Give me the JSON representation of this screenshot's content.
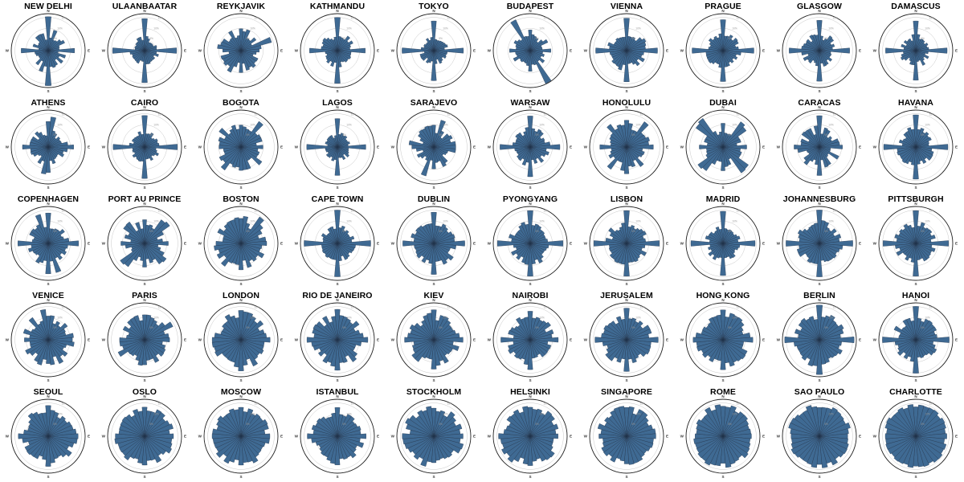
{
  "chart_data": {
    "type": "polar-histogram",
    "title": "",
    "compass_labels": [
      "N",
      "E",
      "S",
      "W"
    ],
    "ring_labels": [
      "5%",
      "10%",
      "15%"
    ],
    "bins": 36,
    "bar_color": "#3f6a93",
    "bar_edge_color": "#1f3048",
    "cities": [
      "NEW DELHI",
      "ULAANBAATAR",
      "REYKJAVIK",
      "KATHMANDU",
      "TOKYO",
      "BUDAPEST",
      "VIENNA",
      "PRAGUE",
      "GLASGOW",
      "DAMASCUS",
      "ATHENS",
      "CAIRO",
      "BOGOTA",
      "LAGOS",
      "SARAJEVO",
      "WARSAW",
      "HONOLULU",
      "DUBAI",
      "CARACAS",
      "HAVANA",
      "COPENHAGEN",
      "PORT AU PRINCE",
      "BOSTON",
      "CAPE TOWN",
      "DUBLIN",
      "PYONGYANG",
      "LISBON",
      "MADRID",
      "JOHANNESBURG",
      "PITTSBURGH",
      "VENICE",
      "PARIS",
      "LONDON",
      "RIO DE JANEIRO",
      "KIEV",
      "NAIROBI",
      "JERUSALEM",
      "HONG KONG",
      "BERLIN",
      "HANOI",
      "SEOUL",
      "OSLO",
      "MOSCOW",
      "ISTANBUL",
      "STOCKHOLM",
      "HELSINKI",
      "SINGAPORE",
      "ROME",
      "SAO PAULO",
      "CHARLOTTE"
    ],
    "profiles": [
      {
        "grid": 0.6,
        "base": 0.25,
        "spread": 0.25,
        "peaks": [
          [
            0,
            1.0,
            1
          ],
          [
            180,
            0.95,
            1
          ],
          [
            90,
            0.75,
            1
          ],
          [
            270,
            0.8,
            1
          ],
          [
            20,
            0.6,
            1
          ],
          [
            200,
            0.6,
            1
          ]
        ]
      },
      {
        "grid": 0.95,
        "base": 0.25,
        "spread": 0.15,
        "peaks": [
          [
            0,
            0.55,
            2
          ],
          [
            180,
            0.55,
            2
          ],
          [
            90,
            0.8,
            1
          ],
          [
            270,
            0.8,
            1
          ]
        ]
      },
      {
        "grid": 0.3,
        "base": 0.3,
        "spread": 0.35,
        "peaks": [
          [
            70,
            0.9,
            1
          ],
          [
            250,
            0.6,
            1
          ],
          [
            330,
            0.65,
            1
          ],
          [
            150,
            0.55,
            1
          ]
        ]
      },
      {
        "grid": 0.7,
        "base": 0.3,
        "spread": 0.2,
        "peaks": [
          [
            0,
            0.95,
            1
          ],
          [
            180,
            0.9,
            1
          ],
          [
            90,
            0.7,
            1
          ],
          [
            270,
            0.8,
            1
          ]
        ]
      },
      {
        "grid": 0.85,
        "base": 0.25,
        "spread": 0.15,
        "peaks": [
          [
            0,
            0.85,
            1
          ],
          [
            180,
            0.9,
            1
          ],
          [
            90,
            0.85,
            1
          ],
          [
            270,
            0.9,
            1
          ]
        ]
      },
      {
        "grid": 0.4,
        "base": 0.3,
        "spread": 0.2,
        "peaks": [
          [
            330,
            1.0,
            1
          ],
          [
            150,
            1.0,
            1
          ],
          [
            60,
            0.55,
            1
          ],
          [
            240,
            0.55,
            1
          ]
        ]
      },
      {
        "grid": 0.75,
        "base": 0.35,
        "spread": 0.2,
        "peaks": [
          [
            0,
            0.9,
            1
          ],
          [
            180,
            0.85,
            1
          ],
          [
            90,
            0.7,
            1
          ],
          [
            270,
            0.8,
            1
          ],
          [
            60,
            0.6,
            1
          ]
        ]
      },
      {
        "grid": 0.75,
        "base": 0.35,
        "spread": 0.15,
        "peaks": [
          [
            0,
            0.8,
            1
          ],
          [
            180,
            0.8,
            1
          ],
          [
            90,
            0.75,
            1
          ],
          [
            270,
            0.8,
            1
          ]
        ]
      },
      {
        "grid": 0.8,
        "base": 0.3,
        "spread": 0.2,
        "peaks": [
          [
            0,
            0.85,
            1
          ],
          [
            180,
            0.85,
            1
          ],
          [
            90,
            0.85,
            1
          ],
          [
            270,
            0.8,
            1
          ]
        ]
      },
      {
        "grid": 0.85,
        "base": 0.25,
        "spread": 0.2,
        "peaks": [
          [
            0,
            0.8,
            1
          ],
          [
            180,
            0.8,
            1
          ],
          [
            90,
            0.85,
            1
          ],
          [
            270,
            0.85,
            1
          ]
        ]
      },
      {
        "grid": 0.6,
        "base": 0.3,
        "spread": 0.25,
        "peaks": [
          [
            10,
            0.85,
            1
          ],
          [
            190,
            0.8,
            1
          ],
          [
            90,
            0.6,
            1
          ],
          [
            270,
            0.7,
            1
          ]
        ]
      },
      {
        "grid": 0.85,
        "base": 0.3,
        "spread": 0.15,
        "peaks": [
          [
            0,
            0.8,
            1
          ],
          [
            180,
            0.8,
            1
          ],
          [
            90,
            0.9,
            1
          ],
          [
            270,
            0.9,
            1
          ]
        ]
      },
      {
        "grid": 0.3,
        "base": 0.4,
        "spread": 0.25,
        "peaks": [
          [
            40,
            0.9,
            1
          ],
          [
            220,
            0.8,
            1
          ],
          [
            310,
            0.8,
            1
          ],
          [
            130,
            0.75,
            1
          ]
        ]
      },
      {
        "grid": 0.8,
        "base": 0.25,
        "spread": 0.15,
        "peaks": [
          [
            0,
            0.8,
            1
          ],
          [
            180,
            0.8,
            1
          ],
          [
            90,
            0.8,
            1
          ],
          [
            270,
            0.85,
            1
          ]
        ]
      },
      {
        "grid": 0.45,
        "base": 0.3,
        "spread": 0.3,
        "peaks": [
          [
            20,
            0.8,
            1
          ],
          [
            200,
            0.85,
            1
          ],
          [
            100,
            0.6,
            1
          ],
          [
            280,
            0.7,
            1
          ]
        ]
      },
      {
        "grid": 0.7,
        "base": 0.35,
        "spread": 0.2,
        "peaks": [
          [
            0,
            0.9,
            1
          ],
          [
            180,
            0.85,
            1
          ],
          [
            90,
            0.7,
            1
          ],
          [
            270,
            0.85,
            1
          ]
        ]
      },
      {
        "grid": 0.5,
        "base": 0.4,
        "spread": 0.25,
        "peaks": [
          [
            40,
            0.85,
            1
          ],
          [
            220,
            0.8,
            1
          ],
          [
            320,
            0.8,
            1
          ],
          [
            140,
            0.7,
            1
          ]
        ]
      },
      {
        "grid": 0.45,
        "base": 0.35,
        "spread": 0.2,
        "peaks": [
          [
            315,
            0.95,
            1
          ],
          [
            135,
            0.9,
            1
          ],
          [
            45,
            0.85,
            1
          ],
          [
            225,
            0.85,
            1
          ]
        ]
      },
      {
        "grid": 0.5,
        "base": 0.3,
        "spread": 0.3,
        "peaks": [
          [
            0,
            0.85,
            1
          ],
          [
            180,
            0.8,
            1
          ],
          [
            90,
            0.65,
            1
          ],
          [
            270,
            0.7,
            1
          ]
        ]
      },
      {
        "grid": 0.8,
        "base": 0.35,
        "spread": 0.2,
        "peaks": [
          [
            0,
            0.85,
            1
          ],
          [
            180,
            0.85,
            1
          ],
          [
            90,
            0.8,
            1
          ],
          [
            270,
            0.8,
            1
          ]
        ]
      },
      {
        "grid": 0.65,
        "base": 0.4,
        "spread": 0.2,
        "peaks": [
          [
            340,
            0.9,
            1
          ],
          [
            160,
            0.85,
            1
          ],
          [
            90,
            0.8,
            1
          ],
          [
            270,
            0.8,
            1
          ]
        ]
      },
      {
        "grid": 0.45,
        "base": 0.35,
        "spread": 0.25,
        "peaks": [
          [
            45,
            0.85,
            1
          ],
          [
            225,
            0.85,
            1
          ],
          [
            315,
            0.75,
            1
          ],
          [
            135,
            0.75,
            1
          ]
        ]
      },
      {
        "grid": 0.35,
        "base": 0.45,
        "spread": 0.3,
        "peaks": [
          [
            40,
            0.9,
            1
          ],
          [
            220,
            0.8,
            1
          ],
          [
            300,
            0.75,
            1
          ],
          [
            120,
            0.7,
            1
          ]
        ]
      },
      {
        "grid": 0.85,
        "base": 0.35,
        "spread": 0.15,
        "peaks": [
          [
            0,
            0.9,
            1
          ],
          [
            180,
            0.9,
            1
          ],
          [
            90,
            0.85,
            1
          ],
          [
            270,
            0.85,
            1
          ]
        ]
      },
      {
        "grid": 0.6,
        "base": 0.45,
        "spread": 0.2,
        "peaks": [
          [
            0,
            0.85,
            1
          ],
          [
            180,
            0.8,
            1
          ],
          [
            90,
            0.75,
            1
          ],
          [
            270,
            0.8,
            1
          ]
        ]
      },
      {
        "grid": 0.75,
        "base": 0.4,
        "spread": 0.2,
        "peaks": [
          [
            0,
            0.85,
            1
          ],
          [
            180,
            0.85,
            1
          ],
          [
            90,
            0.7,
            1
          ],
          [
            270,
            0.8,
            1
          ]
        ]
      },
      {
        "grid": 0.75,
        "base": 0.4,
        "spread": 0.2,
        "peaks": [
          [
            0,
            0.9,
            1
          ],
          [
            180,
            0.85,
            1
          ],
          [
            90,
            0.8,
            1
          ],
          [
            270,
            0.75,
            1
          ]
        ]
      },
      {
        "grid": 0.8,
        "base": 0.35,
        "spread": 0.15,
        "peaks": [
          [
            0,
            0.9,
            1
          ],
          [
            180,
            0.85,
            1
          ],
          [
            90,
            0.75,
            1
          ],
          [
            270,
            0.75,
            1
          ]
        ]
      },
      {
        "grid": 0.7,
        "base": 0.45,
        "spread": 0.2,
        "peaks": [
          [
            0,
            0.8,
            1
          ],
          [
            180,
            0.8,
            1
          ],
          [
            90,
            0.75,
            1
          ],
          [
            270,
            0.75,
            1
          ]
        ]
      },
      {
        "grid": 0.75,
        "base": 0.4,
        "spread": 0.2,
        "peaks": [
          [
            0,
            0.85,
            1
          ],
          [
            180,
            0.9,
            1
          ],
          [
            90,
            0.75,
            1
          ],
          [
            270,
            0.8,
            1
          ]
        ]
      },
      {
        "grid": 0.3,
        "base": 0.45,
        "spread": 0.3,
        "peaks": [
          [
            350,
            0.85,
            1
          ],
          [
            170,
            0.75,
            1
          ],
          [
            50,
            0.7,
            1
          ],
          [
            240,
            0.7,
            1
          ]
        ]
      },
      {
        "grid": 0.35,
        "base": 0.45,
        "spread": 0.25,
        "peaks": [
          [
            60,
            0.85,
            1
          ],
          [
            240,
            0.8,
            1
          ],
          [
            330,
            0.7,
            1
          ],
          [
            150,
            0.7,
            1
          ]
        ]
      },
      {
        "grid": 0.35,
        "base": 0.55,
        "spread": 0.25,
        "peaks": [
          [
            0,
            0.85,
            1
          ],
          [
            180,
            0.85,
            1
          ],
          [
            90,
            0.8,
            1
          ],
          [
            270,
            0.8,
            1
          ]
        ]
      },
      {
        "grid": 0.5,
        "base": 0.5,
        "spread": 0.25,
        "peaks": [
          [
            0,
            0.85,
            1
          ],
          [
            180,
            0.85,
            1
          ],
          [
            90,
            0.8,
            1
          ],
          [
            270,
            0.8,
            1
          ]
        ]
      },
      {
        "grid": 0.45,
        "base": 0.5,
        "spread": 0.25,
        "peaks": [
          [
            0,
            0.85,
            1
          ],
          [
            180,
            0.85,
            1
          ],
          [
            90,
            0.8,
            1
          ],
          [
            270,
            0.8,
            1
          ]
        ]
      },
      {
        "grid": 0.45,
        "base": 0.45,
        "spread": 0.25,
        "peaks": [
          [
            0,
            0.85,
            1
          ],
          [
            180,
            0.85,
            1
          ],
          [
            90,
            0.8,
            1
          ],
          [
            270,
            0.8,
            1
          ]
        ]
      },
      {
        "grid": 0.55,
        "base": 0.5,
        "spread": 0.2,
        "peaks": [
          [
            0,
            0.85,
            1
          ],
          [
            180,
            0.85,
            1
          ],
          [
            90,
            0.8,
            1
          ],
          [
            270,
            0.8,
            1
          ]
        ]
      },
      {
        "grid": 0.4,
        "base": 0.55,
        "spread": 0.2,
        "peaks": [
          [
            0,
            0.8,
            1
          ],
          [
            180,
            0.8,
            1
          ],
          [
            90,
            0.8,
            1
          ],
          [
            270,
            0.8,
            1
          ]
        ]
      },
      {
        "grid": 0.6,
        "base": 0.55,
        "spread": 0.2,
        "peaks": [
          [
            0,
            0.85,
            1
          ],
          [
            180,
            0.85,
            1
          ],
          [
            90,
            0.8,
            1
          ],
          [
            270,
            0.8,
            1
          ]
        ]
      },
      {
        "grid": 0.7,
        "base": 0.45,
        "spread": 0.2,
        "peaks": [
          [
            0,
            0.95,
            1
          ],
          [
            180,
            0.85,
            1
          ],
          [
            90,
            0.8,
            1
          ],
          [
            270,
            0.8,
            1
          ]
        ]
      },
      {
        "grid": 0.4,
        "base": 0.55,
        "spread": 0.25,
        "peaks": [
          [
            0,
            0.85,
            1
          ],
          [
            180,
            0.85,
            1
          ],
          [
            90,
            0.8,
            1
          ],
          [
            270,
            0.8,
            1
          ]
        ]
      },
      {
        "grid": 0.25,
        "base": 0.62,
        "spread": 0.2,
        "peaks": [
          [
            0,
            0.8,
            1
          ],
          [
            180,
            0.8,
            1
          ]
        ]
      },
      {
        "grid": 0.25,
        "base": 0.62,
        "spread": 0.2,
        "peaks": [
          [
            0,
            0.8,
            1
          ],
          [
            90,
            0.8,
            1
          ]
        ]
      },
      {
        "grid": 0.35,
        "base": 0.55,
        "spread": 0.2,
        "peaks": [
          [
            0,
            0.8,
            1
          ],
          [
            180,
            0.8,
            1
          ],
          [
            90,
            0.8,
            1
          ],
          [
            270,
            0.85,
            1
          ]
        ]
      },
      {
        "grid": 0.15,
        "base": 0.62,
        "spread": 0.25,
        "peaks": [
          [
            0,
            0.8,
            1
          ],
          [
            90,
            0.8,
            1
          ]
        ]
      },
      {
        "grid": 0.2,
        "base": 0.62,
        "spread": 0.25,
        "peaks": [
          [
            0,
            0.8,
            1
          ],
          [
            180,
            0.8,
            1
          ]
        ]
      },
      {
        "grid": 0.2,
        "base": 0.62,
        "spread": 0.2,
        "peaks": [
          [
            0,
            0.8,
            1
          ],
          [
            90,
            0.8,
            1
          ]
        ]
      },
      {
        "grid": 0.0,
        "base": 0.72,
        "spread": 0.15,
        "peaks": []
      },
      {
        "grid": 0.0,
        "base": 0.75,
        "spread": 0.12,
        "peaks": []
      },
      {
        "grid": 0.0,
        "base": 0.78,
        "spread": 0.1,
        "peaks": []
      }
    ]
  }
}
